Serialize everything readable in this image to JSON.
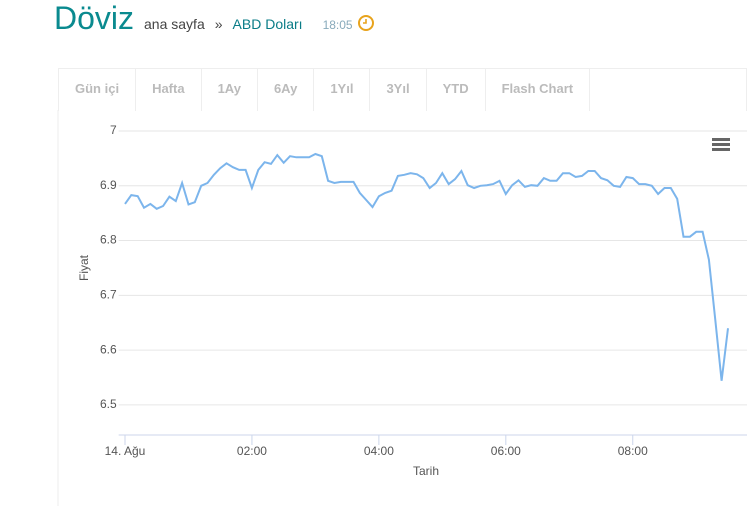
{
  "header": {
    "title": "Döviz",
    "breadcrumb": [
      "ana sayfa",
      "»",
      "ABD Doları"
    ],
    "time": "18:05"
  },
  "tabs": [
    "Gün içi",
    "Hafta",
    "1Ay",
    "6Ay",
    "1Yıl",
    "3Yıl",
    "YTD",
    "Flash Chart"
  ],
  "chart_data": {
    "type": "line",
    "y_label": "Fiyat",
    "x_label": "Tarih",
    "color": "#7cb5ec",
    "grid": true,
    "x": [
      0,
      0.1,
      0.2,
      0.3,
      0.4,
      0.5,
      0.6,
      0.7,
      0.8,
      0.9,
      1,
      1.1,
      1.2,
      1.3,
      1.4,
      1.5,
      1.6,
      1.7,
      1.8,
      1.9,
      2,
      2.1,
      2.2,
      2.3,
      2.4,
      2.5,
      2.6,
      2.7,
      2.8,
      2.9,
      3,
      3.1,
      3.2,
      3.3,
      3.4,
      3.5,
      3.6,
      3.7,
      3.8,
      3.9,
      4,
      4.1,
      4.2,
      4.3,
      4.4,
      4.5,
      4.6,
      4.7,
      4.8,
      4.9,
      5,
      5.1,
      5.2,
      5.3,
      5.4,
      5.5,
      5.6,
      5.7,
      5.8,
      5.9,
      6,
      6.1,
      6.2,
      6.3,
      6.4,
      6.5,
      6.6,
      6.7,
      6.8,
      6.9,
      7,
      7.1,
      7.2,
      7.3,
      7.4,
      7.5,
      7.6,
      7.7,
      7.8,
      7.9,
      8,
      8.1,
      8.2,
      8.3,
      8.4,
      8.5,
      8.6,
      8.7,
      8.8,
      8.9,
      9,
      9.1,
      9.2,
      9.3,
      9.4,
      9.5
    ],
    "values": [
      6.867,
      6.883,
      6.881,
      6.86,
      6.867,
      6.858,
      6.863,
      6.88,
      6.872,
      6.905,
      6.866,
      6.87,
      6.9,
      6.905,
      6.92,
      6.932,
      6.941,
      6.934,
      6.929,
      6.929,
      6.896,
      6.929,
      6.943,
      6.94,
      6.956,
      6.942,
      6.954,
      6.952,
      6.952,
      6.952,
      6.958,
      6.954,
      6.909,
      6.905,
      6.907,
      6.907,
      6.907,
      6.887,
      6.874,
      6.861,
      6.881,
      6.887,
      6.891,
      6.918,
      6.92,
      6.923,
      6.921,
      6.914,
      6.896,
      6.905,
      6.923,
      6.903,
      6.912,
      6.927,
      6.901,
      6.896,
      6.9,
      6.901,
      6.903,
      6.909,
      6.885,
      6.901,
      6.91,
      6.898,
      6.901,
      6.9,
      6.914,
      6.909,
      6.909,
      6.923,
      6.923,
      6.916,
      6.918,
      6.927,
      6.927,
      6.914,
      6.91,
      6.9,
      6.898,
      6.916,
      6.914,
      6.903,
      6.903,
      6.9,
      6.885,
      6.896,
      6.896,
      6.876,
      6.807,
      6.807,
      6.816,
      6.816,
      6.765,
      6.655,
      6.544,
      6.64
    ],
    "xlim": [
      -0.1,
      9.8
    ],
    "ylim": [
      6.445,
      7
    ],
    "xticks": [
      {
        "value": 0,
        "label": "14. Ağu"
      },
      {
        "value": 2,
        "label": "02:00"
      },
      {
        "value": 4,
        "label": "04:00"
      },
      {
        "value": 6,
        "label": "06:00"
      },
      {
        "value": 8,
        "label": "08:00"
      }
    ],
    "yticks": [
      6.5,
      6.6,
      6.7,
      6.8,
      6.9,
      7
    ]
  }
}
